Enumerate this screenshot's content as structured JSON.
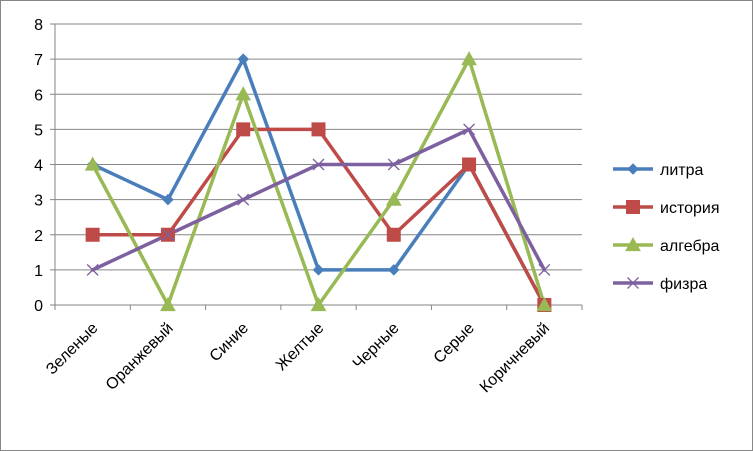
{
  "chart_data": {
    "type": "line",
    "categories": [
      "Зеленые",
      "Оранжевый",
      "Синие",
      "Желтые",
      "Черные",
      "Серые",
      "Коричневый"
    ],
    "ylim": [
      0,
      8
    ],
    "yticks": [
      0,
      1,
      2,
      3,
      4,
      5,
      6,
      7,
      8
    ],
    "grid": true,
    "legend": "right",
    "series": [
      {
        "name": "литра",
        "color": "#4a7ebb",
        "marker": "diamond",
        "values": [
          4,
          3,
          7,
          1,
          1,
          4,
          0
        ]
      },
      {
        "name": "история",
        "color": "#be4b48",
        "marker": "square",
        "values": [
          2,
          2,
          5,
          5,
          2,
          4,
          0
        ]
      },
      {
        "name": "алгебра",
        "color": "#98b954",
        "marker": "triangle",
        "values": [
          4,
          0,
          6,
          0,
          3,
          7,
          0
        ]
      },
      {
        "name": "физра",
        "color": "#7d60a0",
        "marker": "x",
        "values": [
          1,
          2,
          3,
          4,
          4,
          5,
          1
        ]
      }
    ]
  }
}
